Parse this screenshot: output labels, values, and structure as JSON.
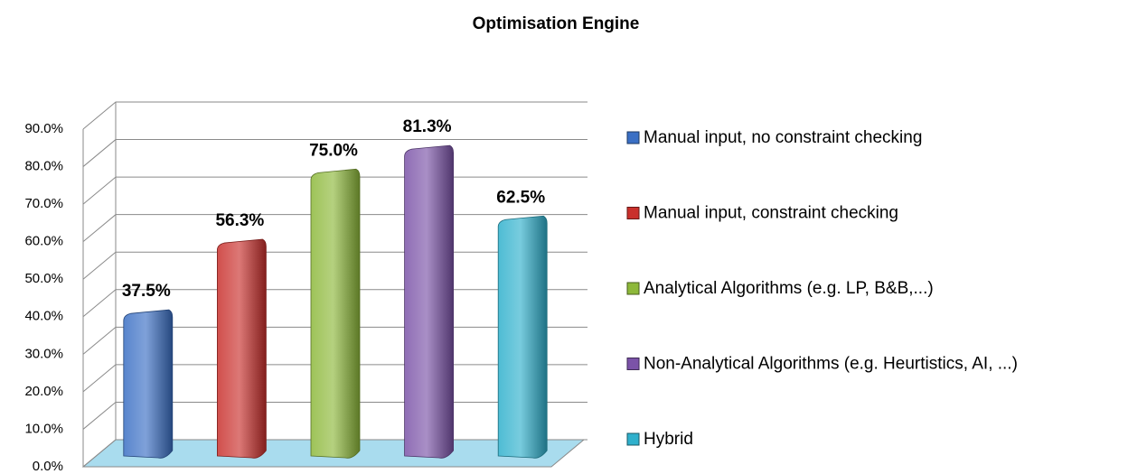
{
  "chart_data": {
    "type": "bar3d",
    "title": "Optimisation Engine",
    "ylim": [
      0,
      90
    ],
    "yticks": [
      {
        "value": 0,
        "label": "0.0%"
      },
      {
        "value": 10,
        "label": "10.0%"
      },
      {
        "value": 20,
        "label": "20.0%"
      },
      {
        "value": 30,
        "label": "30.0%"
      },
      {
        "value": 40,
        "label": "40.0%"
      },
      {
        "value": 50,
        "label": "50.0%"
      },
      {
        "value": 60,
        "label": "60.0%"
      },
      {
        "value": 70,
        "label": "70.0%"
      },
      {
        "value": 80,
        "label": "80.0%"
      },
      {
        "value": 90,
        "label": "90.0%"
      }
    ],
    "grid": true,
    "legend": "right",
    "series": [
      {
        "name": "Manual input, no constraint checking",
        "color": "#3a6fc4",
        "values": [
          37.5
        ],
        "value_labels": [
          "37.5%"
        ]
      },
      {
        "name": "Manual input, constraint checking",
        "color": "#c9302c",
        "values": [
          56.3
        ],
        "value_labels": [
          "56.3%"
        ]
      },
      {
        "name": "Analytical Algorithms (e.g. LP, B&B,...)",
        "color": "#8db83a",
        "values": [
          75.0
        ],
        "value_labels": [
          "75.0%"
        ]
      },
      {
        "name": "Non-Analytical Algorithms (e.g. Heurtistics, AI, ...)",
        "color": "#7b53a8",
        "values": [
          81.3
        ],
        "value_labels": [
          "81.3%"
        ]
      },
      {
        "name": "Hybrid",
        "color": "#2fb0cc",
        "values": [
          62.5
        ],
        "value_labels": [
          "62.5%"
        ]
      }
    ]
  }
}
